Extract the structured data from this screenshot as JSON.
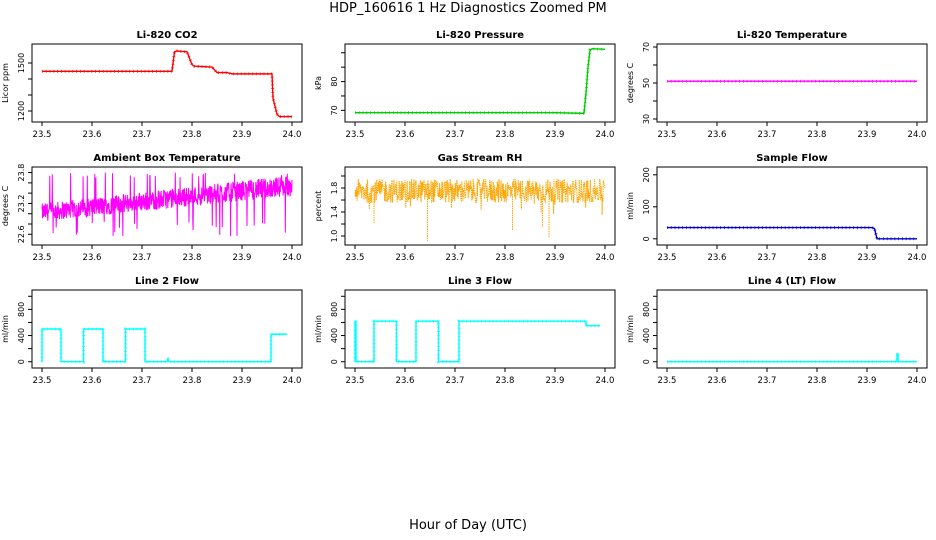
{
  "figure": {
    "title": "HDP_160616  1 Hz Diagnostics Zoomed PM",
    "xlabel": "Hour of Day (UTC)"
  },
  "chart_data": [
    {
      "type": "line",
      "title": "Li-820 CO2",
      "ylabel": "Licor ppm",
      "color": "#ff0000",
      "xlim": [
        23.5,
        24.0
      ],
      "ylim": [
        1150,
        1600
      ],
      "xticks": [
        23.5,
        23.6,
        23.7,
        23.8,
        23.9,
        24.0
      ],
      "xtick_labels": [
        "23.5",
        "23.6",
        "23.7",
        "23.8",
        "23.9",
        "24.0"
      ],
      "yticks": [
        1200,
        1300,
        1400,
        1500
      ],
      "ytick_labels": [
        "1200",
        "",
        "",
        "1500"
      ],
      "series": [
        {
          "name": "CO2",
          "x": [
            23.5,
            23.76,
            23.765,
            23.77,
            23.78,
            23.79,
            23.8,
            23.805,
            23.84,
            23.85,
            23.87,
            23.88,
            23.96,
            23.962,
            23.97,
            23.975,
            24.0
          ],
          "y": [
            1448,
            1448,
            1570,
            1575,
            1572,
            1570,
            1490,
            1480,
            1475,
            1440,
            1440,
            1432,
            1432,
            1280,
            1180,
            1165,
            1165
          ]
        }
      ]
    },
    {
      "type": "line",
      "title": "Li-820 Pressure",
      "ylabel": "kPa",
      "color": "#00cc00",
      "xlim": [
        23.5,
        24.0
      ],
      "ylim": [
        67,
        92
      ],
      "xticks": [
        23.5,
        23.6,
        23.7,
        23.8,
        23.9,
        24.0
      ],
      "xtick_labels": [
        "23.5",
        "23.6",
        "23.7",
        "23.8",
        "23.9",
        "24.0"
      ],
      "yticks": [
        70,
        75,
        80,
        85,
        90
      ],
      "ytick_labels": [
        "70",
        "",
        "80",
        "",
        ""
      ],
      "series": [
        {
          "name": "Pressure",
          "x": [
            23.5,
            23.9,
            23.95,
            23.958,
            23.962,
            23.966,
            23.97,
            23.975,
            24.0
          ],
          "y": [
            69.2,
            69.2,
            69.0,
            69.0,
            76,
            85,
            91,
            91.4,
            91.2
          ]
        }
      ]
    },
    {
      "type": "line",
      "title": "Li-820 Temperature",
      "ylabel": "degrees C",
      "color": "#ff00ff",
      "xlim": [
        23.5,
        24.0
      ],
      "ylim": [
        30,
        70
      ],
      "xticks": [
        23.5,
        23.6,
        23.7,
        23.8,
        23.9,
        24.0
      ],
      "xtick_labels": [
        "23.5",
        "23.6",
        "23.7",
        "23.8",
        "23.9",
        "24.0"
      ],
      "yticks": [
        30,
        40,
        50,
        60,
        70
      ],
      "ytick_labels": [
        "30",
        "",
        "50",
        "",
        "70"
      ],
      "series": [
        {
          "name": "Temperature",
          "x": [
            23.5,
            24.0
          ],
          "y": [
            51,
            51
          ]
        }
      ]
    },
    {
      "type": "line",
      "title": "Ambient Box Temperature",
      "ylabel": "degrees C",
      "color": "#ff00ff",
      "xlim": [
        23.5,
        24.0
      ],
      "ylim": [
        22.45,
        23.85
      ],
      "xticks": [
        23.5,
        23.6,
        23.7,
        23.8,
        23.9,
        24.0
      ],
      "xtick_labels": [
        "23.5",
        "23.6",
        "23.7",
        "23.8",
        "23.9",
        "24.0"
      ],
      "yticks": [
        22.6,
        22.8,
        23.0,
        23.2,
        23.4,
        23.6,
        23.8
      ],
      "ytick_labels": [
        "22.6",
        "",
        "",
        "23.2",
        "",
        "",
        "23.8"
      ],
      "noise": {
        "low_start": 22.85,
        "low_end": 23.35,
        "high_start": 23.2,
        "high_end": 23.75,
        "min": 22.55,
        "max": 23.8
      },
      "series": [
        {
          "name": "Box Temp",
          "x": [
            23.5,
            24.0
          ],
          "y": [
            23.0,
            23.55
          ]
        }
      ]
    },
    {
      "type": "line",
      "title": "Gas Stream RH",
      "ylabel": "percent",
      "color": "#ffa500",
      "xlim": [
        23.5,
        24.0
      ],
      "ylim": [
        0.9,
        2.1
      ],
      "xticks": [
        23.5,
        23.6,
        23.7,
        23.8,
        23.9,
        24.0
      ],
      "xtick_labels": [
        "23.5",
        "23.6",
        "23.7",
        "23.8",
        "23.9",
        "24.0"
      ],
      "yticks": [
        1.0,
        1.2,
        1.4,
        1.6,
        1.8,
        2.0
      ],
      "ytick_labels": [
        "1.0",
        "",
        "1.4",
        "",
        "1.8",
        ""
      ],
      "noise": {
        "low": 1.55,
        "high": 1.95
      },
      "series": [
        {
          "name": "RH",
          "x": [
            23.5,
            24.0
          ],
          "y": [
            1.72,
            1.72
          ]
        }
      ],
      "dips": [
        {
          "x": 23.538,
          "y": 1.2
        },
        {
          "x": 23.645,
          "y": 0.92
        },
        {
          "x": 23.815,
          "y": 1.1
        },
        {
          "x": 23.875,
          "y": 1.15
        },
        {
          "x": 23.888,
          "y": 0.98
        }
      ]
    },
    {
      "type": "line",
      "title": "Sample Flow",
      "ylabel": "ml/min",
      "color": "#0000cc",
      "xlim": [
        23.5,
        24.0
      ],
      "ylim": [
        -10,
        215
      ],
      "xticks": [
        23.5,
        23.6,
        23.7,
        23.8,
        23.9,
        24.0
      ],
      "xtick_labels": [
        "23.5",
        "23.6",
        "23.7",
        "23.8",
        "23.9",
        "24.0"
      ],
      "yticks": [
        0,
        100,
        200
      ],
      "ytick_labels": [
        "0",
        "100",
        "200"
      ],
      "series": [
        {
          "name": "Flow",
          "x": [
            23.5,
            23.91,
            23.915,
            23.92,
            24.0
          ],
          "y": [
            35,
            35,
            32,
            0,
            0
          ]
        }
      ]
    },
    {
      "type": "line",
      "title": "Line 2 Flow",
      "ylabel": "ml/min",
      "color": "#00ffff",
      "xlim": [
        23.5,
        24.0
      ],
      "ylim": [
        -50,
        1050
      ],
      "xticks": [
        23.5,
        23.6,
        23.7,
        23.8,
        23.9,
        24.0
      ],
      "xtick_labels": [
        "23.5",
        "23.6",
        "23.7",
        "23.8",
        "23.9",
        "24.0"
      ],
      "yticks": [
        0,
        200,
        400,
        600,
        800,
        1000
      ],
      "ytick_labels": [
        "0",
        "",
        "400",
        "",
        "800",
        ""
      ],
      "series": [
        {
          "name": "Line 2",
          "x": [
            23.5,
            23.5,
            23.538,
            23.538,
            23.583,
            23.583,
            23.622,
            23.622,
            23.667,
            23.667,
            23.706,
            23.706,
            23.75,
            23.752,
            23.754,
            23.958,
            23.958,
            23.962,
            23.99
          ],
          "y": [
            0,
            500,
            500,
            0,
            0,
            500,
            500,
            0,
            0,
            500,
            500,
            0,
            0,
            30,
            0,
            0,
            420,
            420,
            420
          ]
        }
      ]
    },
    {
      "type": "line",
      "title": "Line 3 Flow",
      "ylabel": "ml/min",
      "color": "#00ffff",
      "xlim": [
        23.5,
        24.0
      ],
      "ylim": [
        -50,
        1050
      ],
      "xticks": [
        23.5,
        23.6,
        23.7,
        23.8,
        23.9,
        24.0
      ],
      "xtick_labels": [
        "23.5",
        "23.6",
        "23.7",
        "23.8",
        "23.9",
        "24.0"
      ],
      "yticks": [
        0,
        200,
        400,
        600,
        800,
        1000
      ],
      "ytick_labels": [
        "0",
        "",
        "400",
        "",
        "800",
        ""
      ],
      "series": [
        {
          "name": "Line 3",
          "x": [
            23.5,
            23.5,
            23.502,
            23.502,
            23.538,
            23.538,
            23.583,
            23.583,
            23.622,
            23.622,
            23.667,
            23.667,
            23.708,
            23.708,
            23.962,
            23.962,
            23.99
          ],
          "y": [
            0,
            620,
            620,
            0,
            0,
            620,
            620,
            0,
            0,
            620,
            620,
            0,
            0,
            620,
            620,
            550,
            550
          ]
        }
      ]
    },
    {
      "type": "line",
      "title": "Line 4 (LT) Flow",
      "ylabel": "ml/min",
      "color": "#00ffff",
      "xlim": [
        23.5,
        24.0
      ],
      "ylim": [
        -50,
        1050
      ],
      "xticks": [
        23.5,
        23.6,
        23.7,
        23.8,
        23.9,
        24.0
      ],
      "xtick_labels": [
        "23.5",
        "23.6",
        "23.7",
        "23.8",
        "23.9",
        "24.0"
      ],
      "yticks": [
        0,
        200,
        400,
        600,
        800,
        1000
      ],
      "ytick_labels": [
        "0",
        "",
        "400",
        "",
        "800",
        ""
      ],
      "series": [
        {
          "name": "Line 4",
          "x": [
            23.5,
            23.96,
            23.96,
            23.962,
            23.962,
            24.0
          ],
          "y": [
            0,
            0,
            120,
            120,
            0,
            0
          ]
        }
      ]
    }
  ]
}
